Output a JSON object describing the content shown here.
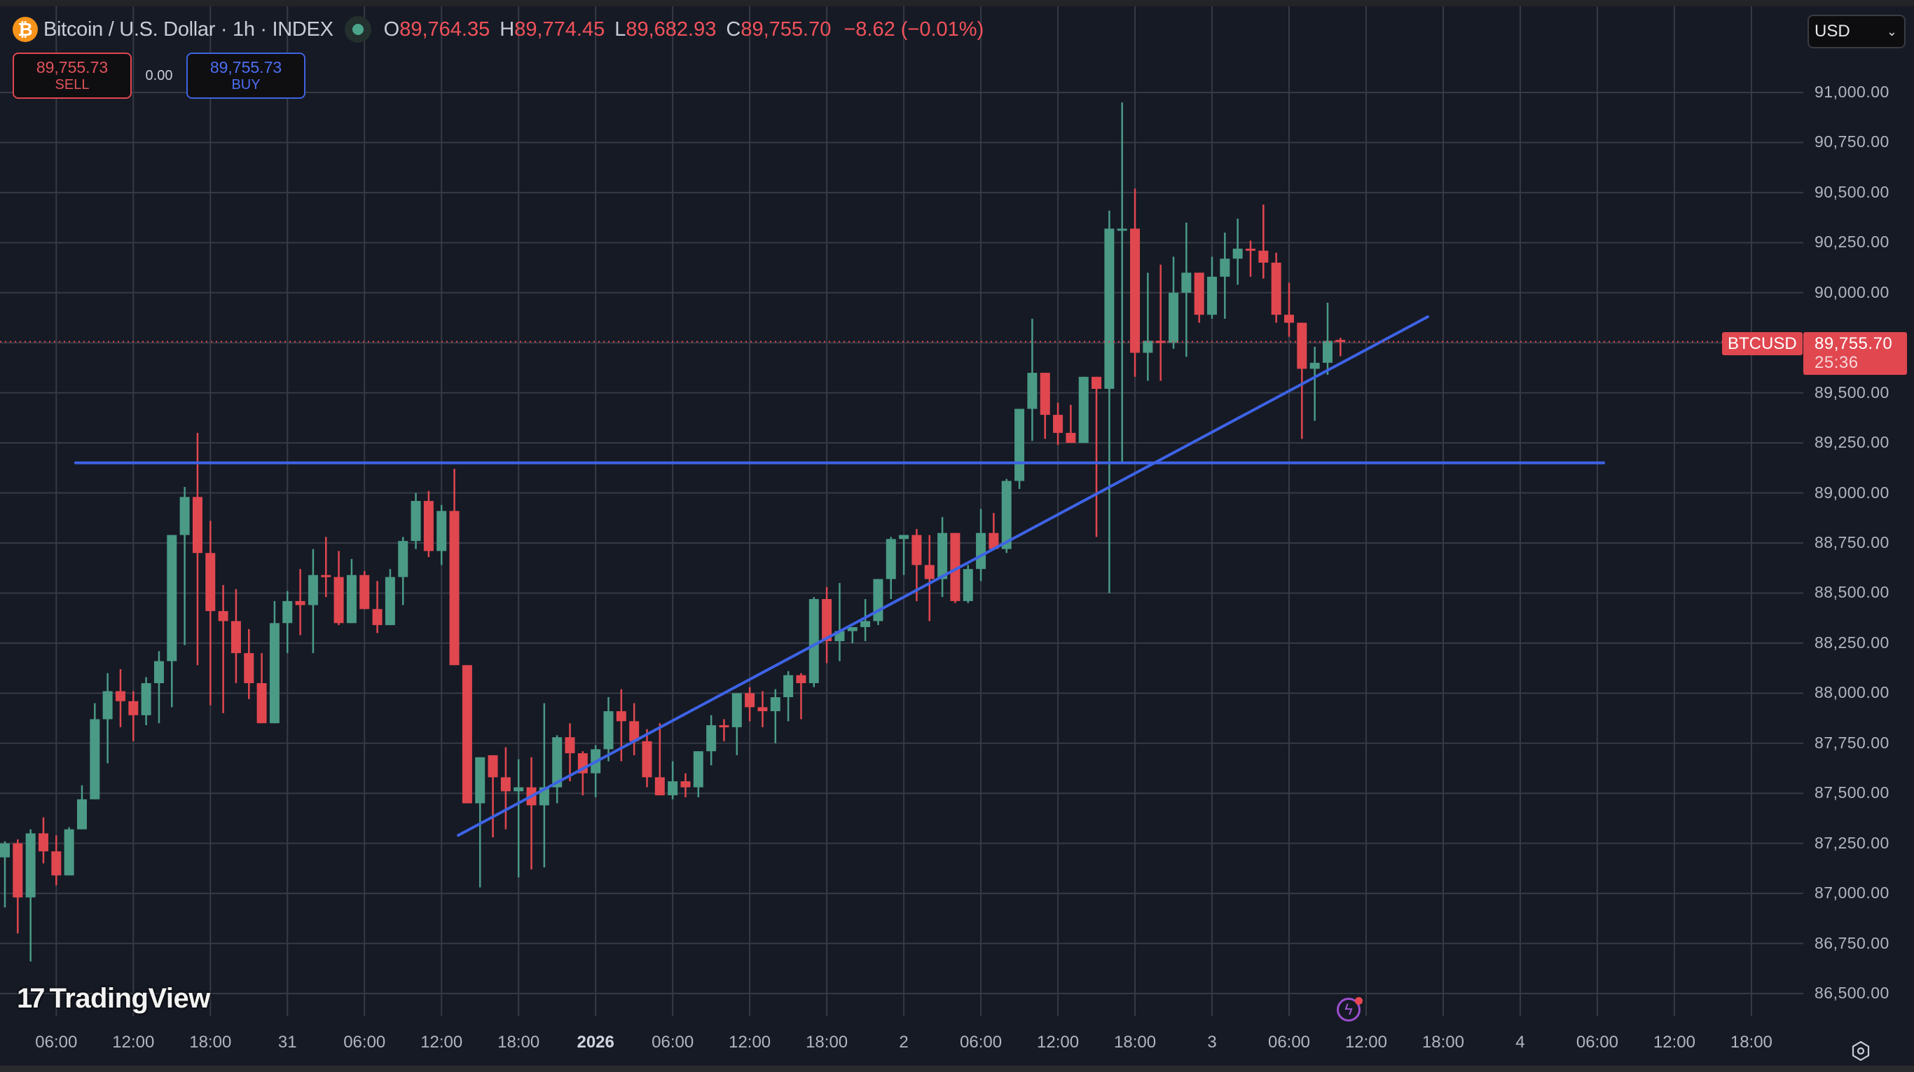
{
  "header": {
    "coin_icon": "bitcoin-icon",
    "coin_glyph": "₿",
    "symbol_title": "Bitcoin / U.S. Dollar · 1h · INDEX",
    "market_status_icon": "market-open-dot-icon",
    "ohlc": {
      "open_label": "O",
      "open": "89,764.35",
      "high_label": "H",
      "high": "89,774.45",
      "low_label": "L",
      "low": "89,682.93",
      "close_label": "C",
      "close": "89,755.70",
      "change": "−8.62 (−0.01%)"
    }
  },
  "trade": {
    "sell_price": "89,755.73",
    "sell_label": "SELL",
    "spread": "0.00",
    "buy_price": "89,755.73",
    "buy_label": "BUY"
  },
  "currency_select": {
    "value": "USD",
    "icon": "chevron-down-icon"
  },
  "price_tag": {
    "symbol": "BTCUSD",
    "price": "89,755.70",
    "countdown": "25:36"
  },
  "branding": {
    "logo_mark": "17",
    "logo_text": "TradingView"
  },
  "icons": {
    "alerts": "lightning-bolt-icon",
    "settings": "gear-icon"
  },
  "colors": {
    "background": "#161a25",
    "grid": "#363a45",
    "up": "#4a9a86",
    "down": "#e0474f",
    "drawing": "#3d63e6",
    "last_price_line": "#e0474f"
  },
  "chart_data": {
    "type": "candlestick",
    "title": "Bitcoin / U.S. Dollar · 1h · INDEX",
    "xlabel": "",
    "ylabel": "USD",
    "interval": "1h",
    "ylim": [
      86400,
      91120
    ],
    "y_ticks": [
      "91,000.00",
      "90,750.00",
      "90,500.00",
      "90,250.00",
      "90,000.00",
      "89,750.00",
      "89,500.00",
      "89,250.00",
      "89,000.00",
      "88,750.00",
      "88,500.00",
      "88,250.00",
      "88,000.00",
      "87,750.00",
      "87,500.00",
      "87,250.00",
      "87,000.00",
      "86,750.00",
      "86,500.00"
    ],
    "y_tick_values": [
      91000,
      90750,
      90500,
      90250,
      90000,
      89750,
      89500,
      89250,
      89000,
      88750,
      88500,
      88250,
      88000,
      87750,
      87500,
      87250,
      87000,
      86750,
      86500
    ],
    "hidden_y_ticks": [
      89750
    ],
    "x_ticks": [
      {
        "label": "06:00",
        "hour": 4
      },
      {
        "label": "12:00",
        "hour": 10
      },
      {
        "label": "18:00",
        "hour": 16
      },
      {
        "label": "31",
        "hour": 22
      },
      {
        "label": "06:00",
        "hour": 28
      },
      {
        "label": "12:00",
        "hour": 34
      },
      {
        "label": "18:00",
        "hour": 40
      },
      {
        "label": "2026",
        "hour": 46,
        "bold": true
      },
      {
        "label": "06:00",
        "hour": 52
      },
      {
        "label": "12:00",
        "hour": 58
      },
      {
        "label": "18:00",
        "hour": 64
      },
      {
        "label": "2",
        "hour": 70
      },
      {
        "label": "06:00",
        "hour": 76
      },
      {
        "label": "12:00",
        "hour": 82
      },
      {
        "label": "18:00",
        "hour": 88
      },
      {
        "label": "3",
        "hour": 94
      },
      {
        "label": "06:00",
        "hour": 100
      },
      {
        "label": "12:00",
        "hour": 106
      },
      {
        "label": "18:00",
        "hour": 112
      },
      {
        "label": "4",
        "hour": 118
      },
      {
        "label": "06:00",
        "hour": 124
      },
      {
        "label": "12:00",
        "hour": 130
      },
      {
        "label": "18:00",
        "hour": 136
      }
    ],
    "first_candle": "Dec 30 02:00",
    "last_candle": "Jan 3 11:00",
    "last_price": 89755.7,
    "candles": [
      [
        87180,
        87260,
        86930,
        87250
      ],
      [
        87250,
        87270,
        86800,
        86980
      ],
      [
        86980,
        87320,
        86660,
        87300
      ],
      [
        87300,
        87380,
        87150,
        87210
      ],
      [
        87210,
        87290,
        87040,
        87090
      ],
      [
        87090,
        87330,
        87090,
        87320
      ],
      [
        87320,
        87540,
        87390,
        87470
      ],
      [
        87470,
        87950,
        87480,
        87870
      ],
      [
        87870,
        88100,
        87650,
        88010
      ],
      [
        88010,
        88120,
        87830,
        87960
      ],
      [
        87960,
        88010,
        87760,
        87890
      ],
      [
        87890,
        88080,
        87840,
        88050
      ],
      [
        88050,
        88210,
        87850,
        88160
      ],
      [
        88160,
        88780,
        87930,
        88790
      ],
      [
        88790,
        89030,
        88240,
        88980
      ],
      [
        88980,
        89300,
        88140,
        88700
      ],
      [
        88700,
        88860,
        87940,
        88410
      ],
      [
        88410,
        88540,
        87900,
        88360
      ],
      [
        88360,
        88520,
        88050,
        88200
      ],
      [
        88200,
        88320,
        87970,
        88050
      ],
      [
        88050,
        88200,
        87860,
        87850
      ],
      [
        87850,
        88460,
        87860,
        88350
      ],
      [
        88350,
        88510,
        88200,
        88460
      ],
      [
        88460,
        88620,
        88290,
        88440
      ],
      [
        88440,
        88720,
        88200,
        88590
      ],
      [
        88590,
        88780,
        88480,
        88580
      ],
      [
        88580,
        88710,
        88340,
        88350
      ],
      [
        88350,
        88670,
        88360,
        88590
      ],
      [
        88590,
        88610,
        88430,
        88420
      ],
      [
        88420,
        88560,
        88300,
        88340
      ],
      [
        88340,
        88620,
        88360,
        88580
      ],
      [
        88580,
        88780,
        88440,
        88760
      ],
      [
        88760,
        89000,
        88720,
        88960
      ],
      [
        88960,
        89010,
        88680,
        88710
      ],
      [
        88710,
        88940,
        88640,
        88910
      ],
      [
        88910,
        89120,
        88400,
        88140
      ],
      [
        88140,
        88140,
        87670,
        87450
      ],
      [
        87450,
        87630,
        87030,
        87680
      ],
      [
        87690,
        87680,
        87280,
        87580
      ],
      [
        87580,
        87730,
        87320,
        87510
      ],
      [
        87510,
        87670,
        87080,
        87530
      ],
      [
        87530,
        87680,
        87120,
        87440
      ],
      [
        87440,
        87950,
        87130,
        87530
      ],
      [
        87530,
        87790,
        87450,
        87780
      ],
      [
        87780,
        87850,
        87560,
        87700
      ],
      [
        87700,
        87710,
        87490,
        87600
      ],
      [
        87600,
        87740,
        87480,
        87720
      ],
      [
        87720,
        87980,
        87660,
        87910
      ],
      [
        87910,
        88020,
        87660,
        87860
      ],
      [
        87860,
        87950,
        87690,
        87760
      ],
      [
        87760,
        87820,
        87530,
        87580
      ],
      [
        87580,
        87850,
        87500,
        87490
      ],
      [
        87490,
        87660,
        87470,
        87560
      ],
      [
        87560,
        87600,
        87480,
        87530
      ],
      [
        87530,
        87640,
        87480,
        87710
      ],
      [
        87710,
        87890,
        87640,
        87840
      ],
      [
        87840,
        87870,
        87760,
        87830
      ],
      [
        87830,
        87940,
        87690,
        88000
      ],
      [
        88000,
        88030,
        87860,
        87930
      ],
      [
        87930,
        88010,
        87830,
        87910
      ],
      [
        87910,
        88020,
        87750,
        87980
      ],
      [
        87980,
        88110,
        87860,
        88090
      ],
      [
        88090,
        88100,
        87870,
        88050
      ],
      [
        88050,
        88480,
        88030,
        88470
      ],
      [
        88470,
        88530,
        88150,
        88260
      ],
      [
        88260,
        88550,
        88160,
        88310
      ],
      [
        88310,
        88320,
        88250,
        88330
      ],
      [
        88330,
        88470,
        88260,
        88360
      ],
      [
        88360,
        88570,
        88340,
        88570
      ],
      [
        88570,
        88780,
        88470,
        88770
      ],
      [
        88770,
        88790,
        88590,
        88790
      ],
      [
        88790,
        88820,
        88460,
        88640
      ],
      [
        88640,
        88790,
        88360,
        88570
      ],
      [
        88570,
        88880,
        88480,
        88800
      ],
      [
        88800,
        88800,
        88450,
        88460
      ],
      [
        88460,
        88640,
        88450,
        88620
      ],
      [
        88620,
        88920,
        88560,
        88800
      ],
      [
        88800,
        88900,
        88720,
        88720
      ],
      [
        88720,
        89070,
        88700,
        89060
      ],
      [
        89060,
        89420,
        89020,
        89420
      ],
      [
        89420,
        89870,
        89260,
        89600
      ],
      [
        89600,
        89600,
        89270,
        89390
      ],
      [
        89390,
        89450,
        89240,
        89300
      ],
      [
        89300,
        89440,
        89270,
        89250
      ],
      [
        89250,
        89550,
        89270,
        89580
      ],
      [
        89580,
        89580,
        88780,
        89520
      ],
      [
        89520,
        90410,
        88500,
        90320
      ],
      [
        90320,
        90950,
        89150,
        90320
      ],
      [
        90320,
        90520,
        89580,
        89700
      ],
      [
        89700,
        90100,
        89560,
        89760
      ],
      [
        89760,
        90140,
        89560,
        89750
      ],
      [
        89750,
        90180,
        89720,
        90000
      ],
      [
        90000,
        90350,
        89680,
        90100
      ],
      [
        90100,
        90090,
        89850,
        89890
      ],
      [
        89890,
        90180,
        89870,
        90080
      ],
      [
        90080,
        90300,
        89870,
        90170
      ],
      [
        90170,
        90370,
        90040,
        90220
      ],
      [
        90220,
        90260,
        90080,
        90210
      ],
      [
        90210,
        90440,
        90070,
        90150
      ],
      [
        90150,
        90200,
        89850,
        89890
      ],
      [
        89890,
        90050,
        89780,
        89850
      ],
      [
        89850,
        89830,
        89270,
        89620
      ],
      [
        89620,
        89730,
        89360,
        89650
      ],
      [
        89650,
        89950,
        89590,
        89760
      ],
      [
        89764.35,
        89774.45,
        89682.93,
        89755.7
      ]
    ],
    "drawings": [
      {
        "type": "horizontal_ray",
        "price": 89150,
        "from_hour": 5.5,
        "to_hour": 69.5,
        "extends_to_hour": 124.5,
        "color": "#3d63e6"
      },
      {
        "type": "trendline",
        "from": {
          "hour": 35.3,
          "price": 87290
        },
        "to": {
          "hour": 110.8,
          "price": 89880
        },
        "color": "#3d63e6"
      }
    ]
  }
}
